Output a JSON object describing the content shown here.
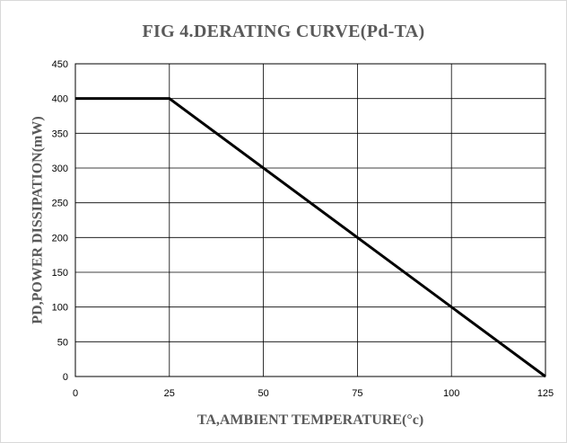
{
  "chart_data": {
    "type": "line",
    "title": "FIG 4.DERATING CURVE(Pd-TA)",
    "xlabel": "TA,AMBIENT TEMPERATURE(°c)",
    "ylabel": "PD,POWER DISSIPATION(mW)",
    "xlim": [
      0,
      125
    ],
    "ylim": [
      0,
      450
    ],
    "x_ticks": [
      0,
      25,
      50,
      75,
      100,
      125
    ],
    "y_ticks": [
      0,
      50,
      100,
      150,
      200,
      250,
      300,
      350,
      400,
      450
    ],
    "grid": true,
    "legend": "none",
    "line_color": "#000000",
    "series": [
      {
        "x": [
          0,
          25,
          125
        ],
        "y": [
          400,
          400,
          0
        ]
      }
    ]
  }
}
